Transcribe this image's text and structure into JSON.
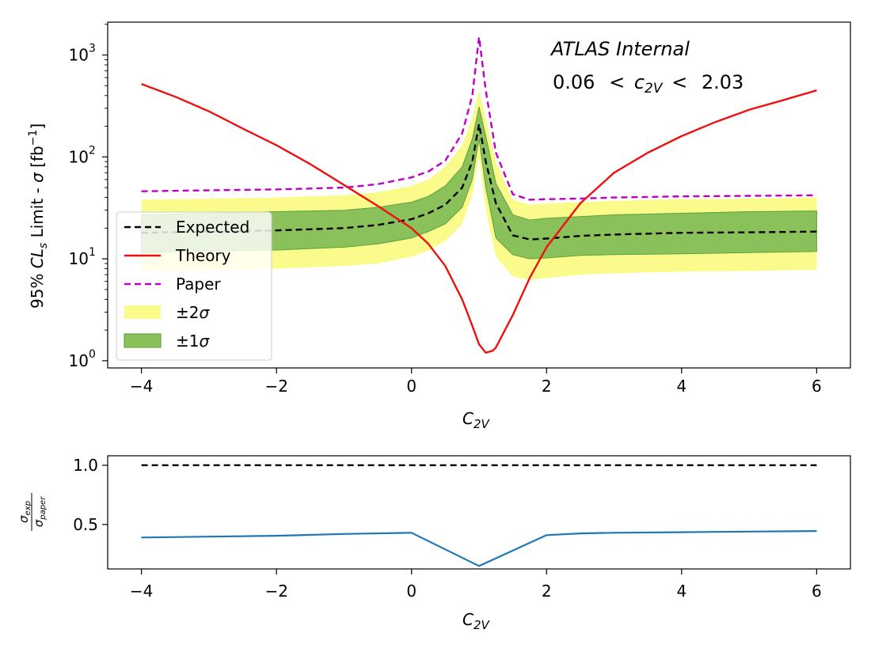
{
  "chart_data": [
    {
      "type": "line",
      "annotation": "ATLAS Internal",
      "range_text": {
        "lower": "0.06",
        "lt1": "<",
        "var_main": "c",
        "var_sub": "2V",
        "lt2": "<",
        "upper": "2.03"
      },
      "xlabel": {
        "main": "C",
        "sub": "2V"
      },
      "ylabel": {
        "prefix": "95% ",
        "cl_main": "CL",
        "cl_sub": "s",
        "mid": " Limit - ",
        "sigma": "σ",
        "unit_open": " [fb",
        "unit_exp": "−1",
        "unit_close": "]"
      },
      "xlim": [
        -4.5,
        6.5
      ],
      "ylim": [
        0.85,
        2100
      ],
      "yscale": "log",
      "xticks": [
        -4,
        -2,
        0,
        2,
        4,
        6
      ],
      "xtick_labels": [
        "−4",
        "−2",
        "0",
        "2",
        "4",
        "6"
      ],
      "yticks": [
        1,
        10,
        100,
        1000
      ],
      "ytick_labels": [
        {
          "base": "10",
          "exp": "0"
        },
        {
          "base": "10",
          "exp": "1"
        },
        {
          "base": "10",
          "exp": "2"
        },
        {
          "base": "10",
          "exp": "3"
        }
      ],
      "legend": {
        "placement": "lower-left",
        "entries": [
          {
            "label": "Expected",
            "style": "dashed",
            "color": "#000000"
          },
          {
            "label": "Theory",
            "style": "solid",
            "color": "#ee1111"
          },
          {
            "label": "Paper",
            "style": "dashed",
            "color": "#c000c0"
          },
          {
            "label_prefix": "±2",
            "label_sigma": "σ",
            "style": "patch",
            "color": "#fbfb8c"
          },
          {
            "label_prefix": "±1",
            "label_sigma": "σ",
            "style": "patch",
            "color": "#8bc15a"
          }
        ]
      },
      "x": [
        -4,
        -3,
        -2,
        -1,
        -0.5,
        0,
        0.25,
        0.5,
        0.75,
        0.9,
        1.0,
        1.1,
        1.25,
        1.5,
        1.75,
        2,
        2.5,
        3,
        4,
        5,
        6
      ],
      "series": [
        {
          "name": "Expected",
          "color": "#000000",
          "style": "dashed",
          "values": [
            18,
            18.5,
            19,
            20,
            21.5,
            24.5,
            28,
            34,
            50,
            90,
            210,
            90,
            35,
            17,
            15.5,
            15.8,
            16.8,
            17.3,
            18,
            18.2,
            18.5
          ]
        },
        {
          "name": "Paper",
          "color": "#c000c0",
          "style": "dashed",
          "values": [
            46,
            47,
            48,
            50,
            54,
            63,
            72,
            92,
            170,
            400,
            1500,
            450,
            110,
            43,
            38,
            38.5,
            39,
            40,
            41,
            41.5,
            42
          ]
        },
        {
          "name": "+2σ",
          "color": "#fbfb8c",
          "values": [
            38,
            39,
            40,
            42,
            45,
            52,
            60,
            80,
            130,
            240,
            450,
            240,
            90,
            38,
            34,
            35,
            36,
            37,
            38.5,
            39,
            40
          ]
        },
        {
          "name": "+1σ",
          "color": "#8bc15a",
          "values": [
            27,
            28,
            29,
            30,
            32,
            36,
            41,
            52,
            80,
            150,
            310,
            160,
            55,
            27,
            24,
            25,
            26,
            27,
            28,
            29,
            29.5
          ]
        },
        {
          "name": "−1σ",
          "color": "#8bc15a",
          "values": [
            11.5,
            12,
            12.2,
            13,
            14,
            16,
            18.5,
            22,
            32,
            60,
            150,
            50,
            16,
            11,
            10,
            10.2,
            10.8,
            11,
            11.2,
            11.5,
            11.8
          ]
        },
        {
          "name": "−2σ",
          "color": "#fbfb8c",
          "values": [
            7.5,
            7.8,
            8,
            8.5,
            9,
            10.5,
            12,
            15,
            22,
            42,
            100,
            30,
            10.5,
            6.7,
            6.2,
            6.5,
            7,
            7.2,
            7.5,
            7.6,
            7.8
          ]
        }
      ],
      "theory": {
        "name": "Theory",
        "color": "#ee1111",
        "style": "solid",
        "x": [
          -4,
          -3.5,
          -3,
          -2.5,
          -2,
          -1.5,
          -1,
          -0.5,
          0,
          0.25,
          0.5,
          0.75,
          0.9,
          1.0,
          1.1,
          1.2,
          1.25,
          1.5,
          1.75,
          2,
          2.5,
          3,
          3.5,
          4,
          4.5,
          5,
          5.5,
          6
        ],
        "values": [
          520,
          390,
          280,
          190,
          130,
          85,
          53,
          33,
          20,
          14,
          8.5,
          4,
          2.2,
          1.45,
          1.2,
          1.25,
          1.35,
          2.8,
          6.5,
          13,
          35,
          70,
          110,
          160,
          220,
          290,
          360,
          450
        ]
      }
    },
    {
      "type": "line",
      "xlabel": {
        "main": "C",
        "sub": "2V"
      },
      "ylabel": {
        "num_main": "σ",
        "num_sub": "exp",
        "den_main": "σ",
        "den_sub": "paper"
      },
      "xlim": [
        -4.5,
        6.5
      ],
      "ylim": [
        0.125,
        1.08
      ],
      "xticks": [
        -4,
        -2,
        0,
        2,
        4,
        6
      ],
      "xtick_labels": [
        "−4",
        "−2",
        "0",
        "2",
        "4",
        "6"
      ],
      "yticks": [
        0.5,
        1.0
      ],
      "ytick_labels": [
        "0.5",
        "1.0"
      ],
      "x": [
        -4,
        -2,
        -1,
        0,
        1,
        2,
        2.5,
        3,
        4,
        5,
        6
      ],
      "series": [
        {
          "color": "#1f77b4",
          "style": "solid",
          "values": [
            0.39,
            0.405,
            0.42,
            0.43,
            0.15,
            0.41,
            0.425,
            0.43,
            0.435,
            0.44,
            0.445
          ]
        }
      ],
      "reference": {
        "value": 1.0,
        "color": "#000000",
        "style": "dashed"
      }
    }
  ]
}
